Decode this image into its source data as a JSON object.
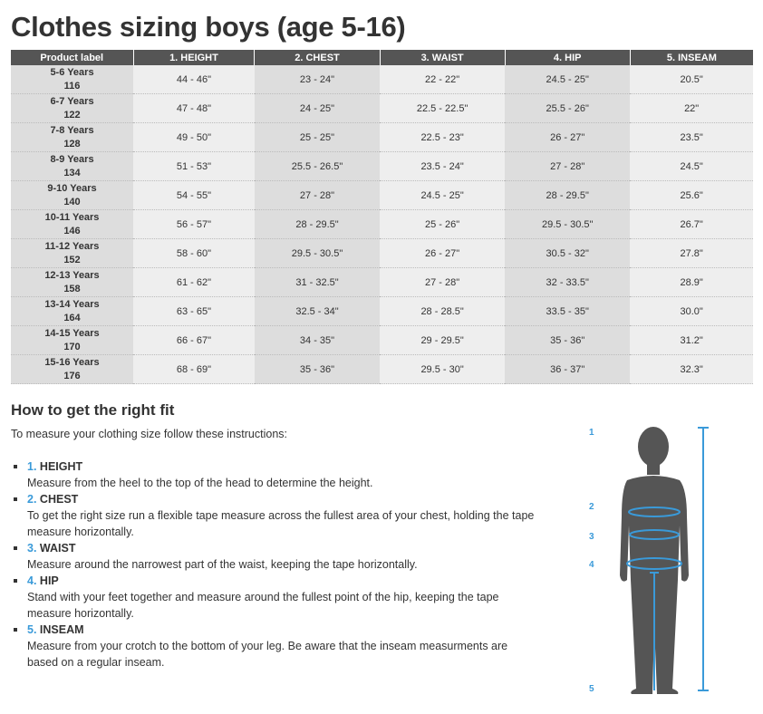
{
  "title": "Clothes sizing boys (age 5-16)",
  "table": {
    "headers": [
      "Product label",
      "1. HEIGHT",
      "2. CHEST",
      "3. WAIST",
      "4. HIP",
      "5. INSEAM"
    ],
    "rows": [
      {
        "age": "5-6 Years",
        "size": "116",
        "cells": [
          "44 - 46\"",
          "23 - 24\"",
          "22 - 22\"",
          "24.5 - 25\"",
          "20.5\""
        ]
      },
      {
        "age": "6-7 Years",
        "size": "122",
        "cells": [
          "47 - 48\"",
          "24 - 25\"",
          "22.5 - 22.5\"",
          "25.5 - 26\"",
          "22\""
        ]
      },
      {
        "age": "7-8 Years",
        "size": "128",
        "cells": [
          "49 - 50\"",
          "25 - 25\"",
          "22.5 - 23\"",
          "26 - 27\"",
          "23.5\""
        ]
      },
      {
        "age": "8-9 Years",
        "size": "134",
        "cells": [
          "51 - 53\"",
          "25.5 - 26.5\"",
          "23.5 - 24\"",
          "27 - 28\"",
          "24.5\""
        ]
      },
      {
        "age": "9-10 Years",
        "size": "140",
        "cells": [
          "54 - 55\"",
          "27 - 28\"",
          "24.5 - 25\"",
          "28 - 29.5\"",
          "25.6\""
        ]
      },
      {
        "age": "10-11 Years",
        "size": "146",
        "cells": [
          "56 - 57\"",
          "28 - 29.5\"",
          "25 - 26\"",
          "29.5 - 30.5\"",
          "26.7\""
        ]
      },
      {
        "age": "11-12 Years",
        "size": "152",
        "cells": [
          "58 - 60\"",
          "29.5 - 30.5\"",
          "26 - 27\"",
          "30.5 - 32\"",
          "27.8\""
        ]
      },
      {
        "age": "12-13 Years",
        "size": "158",
        "cells": [
          "61 - 62\"",
          "31 - 32.5\"",
          "27 - 28\"",
          "32 - 33.5\"",
          "28.9\""
        ]
      },
      {
        "age": "13-14 Years",
        "size": "164",
        "cells": [
          "63 - 65\"",
          "32.5 - 34\"",
          "28 - 28.5\"",
          "33.5 - 35\"",
          "30.0\""
        ]
      },
      {
        "age": "14-15 Years",
        "size": "170",
        "cells": [
          "66 - 67\"",
          "34 - 35\"",
          "29 - 29.5\"",
          "35 - 36\"",
          "31.2\""
        ]
      },
      {
        "age": "15-16 Years",
        "size": "176",
        "cells": [
          "68 - 69\"",
          "35 - 36\"",
          "29.5 - 30\"",
          "36 - 37\"",
          "32.3\""
        ]
      }
    ]
  },
  "fit": {
    "heading": "How to get the right fit",
    "intro": "To measure your clothing size follow these instructions:",
    "items": [
      {
        "num": "1.",
        "title": "HEIGHT",
        "text": "Measure from the heel to the top of the head to determine the height."
      },
      {
        "num": "2.",
        "title": "CHEST",
        "text": "To get the right size run a flexible tape measure across the fullest area of your chest, holding the tape measure horizontally."
      },
      {
        "num": "3.",
        "title": "WAIST",
        "text": "Measure around the narrowest part of the waist, keeping the tape horizontally."
      },
      {
        "num": "4.",
        "title": "HIP",
        "text": "Stand with your feet together and measure around the fullest point of the hip, keeping the tape measure horizontally."
      },
      {
        "num": "5.",
        "title": "INSEAM",
        "text": "Measure from your crotch to the bottom of your leg. Be aware that the inseam measurments are based on a regular inseam."
      }
    ]
  },
  "figure": {
    "labels": [
      "1",
      "2",
      "3",
      "4",
      "5"
    ],
    "accent": "#3a9ad9",
    "silhouette": "#555555"
  }
}
